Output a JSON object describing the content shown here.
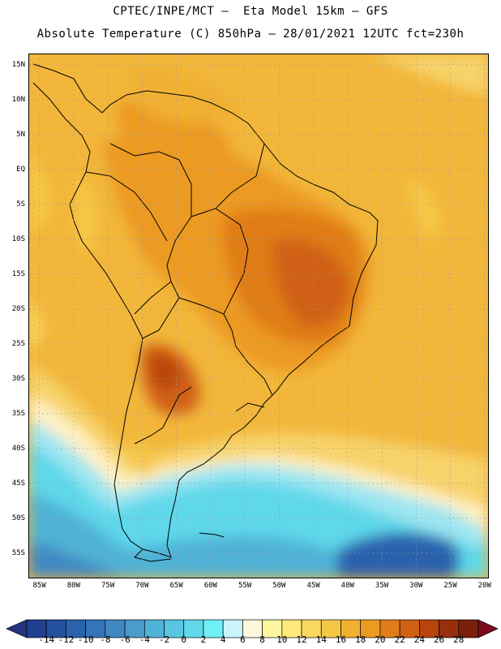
{
  "title": {
    "line1": "CPTEC/INPE/MCT –  Eta Model 15km – GFS",
    "line2": "Absolute Temperature (C) 850hPa – 28/01/2021 12UTC fct=230h"
  },
  "map": {
    "lat_labels": [
      "15N",
      "10N",
      "5N",
      "EQ",
      "5S",
      "10S",
      "15S",
      "20S",
      "25S",
      "30S",
      "35S",
      "40S",
      "45S",
      "50S",
      "55S"
    ],
    "lat_values": [
      15,
      10,
      5,
      0,
      -5,
      -10,
      -15,
      -20,
      -25,
      -30,
      -35,
      -40,
      -45,
      -50,
      -55
    ],
    "lon_labels": [
      "85W",
      "80W",
      "75W",
      "70W",
      "65W",
      "60W",
      "55W",
      "50W",
      "45W",
      "40W",
      "35W",
      "30W",
      "25W",
      "20W"
    ],
    "lon_values": [
      -85,
      -80,
      -75,
      -70,
      -65,
      -60,
      -55,
      -50,
      -45,
      -40,
      -35,
      -30,
      -25,
      -20
    ],
    "extent": {
      "lon_min": -86.5,
      "lon_max": -19.5,
      "lat_min": -58.5,
      "lat_max": 16.5
    },
    "grid": true
  },
  "colorbar": {
    "labels": [
      "-14",
      "-12",
      "-10",
      "-8",
      "-6",
      "-4",
      "-2",
      "0",
      "2",
      "4",
      "6",
      "8",
      "10",
      "12",
      "14",
      "16",
      "18",
      "20",
      "22",
      "24",
      "26",
      "28"
    ],
    "colors": [
      "#1f3f8f",
      "#25509e",
      "#2b62ad",
      "#3574b8",
      "#3f88c2",
      "#4b9ccb",
      "#4fb2d6",
      "#58c6e0",
      "#5fd8ea",
      "#6ef0f7",
      "#c9f4fb",
      "#fff7dc",
      "#fff6a0",
      "#ffe97a",
      "#fbd960",
      "#f5c745",
      "#f0b030",
      "#ec9a22",
      "#e07d18",
      "#d06012",
      "#b8440e",
      "#96300c",
      "#7a1f0a"
    ],
    "under_color": "#23357f",
    "over_color": "#7a0a1f"
  }
}
